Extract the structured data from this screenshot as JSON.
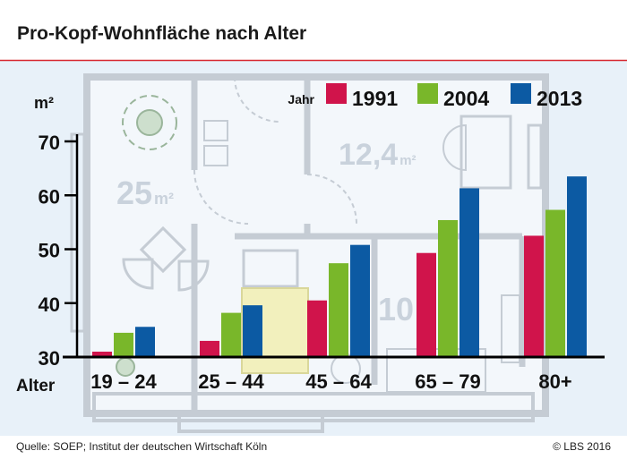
{
  "title": "Pro-Kopf-Wohnfläche nach Alter",
  "source": "Quelle: SOEP; Institut der deutschen Wirtschaft Köln",
  "copyright": "© LBS 2016",
  "colors": {
    "header_bg": "#ffffff",
    "plot_bg": "#e8f1f9",
    "title_rule": "#d7282f",
    "series_1991": "#d0144b",
    "series_2004": "#79b72a",
    "series_2013": "#0c5aa3",
    "floorplan_line": "#c5ccd4",
    "floorplan_fill": "#f3f7fb"
  },
  "floorplan": {
    "room_labels": [
      {
        "number": "25",
        "unit": "m²"
      },
      {
        "number": "12,4",
        "unit": "m²"
      },
      {
        "number": "10",
        "unit": ""
      }
    ]
  },
  "chart_data": {
    "type": "bar",
    "title": "Pro-Kopf-Wohnfläche nach Alter",
    "ylabel": "m²",
    "xlabel": "Alter",
    "legend_label": "Jahr",
    "legend_position": "top-right",
    "ylim": [
      30,
      70
    ],
    "yticks": [
      30,
      40,
      50,
      60,
      70
    ],
    "categories": [
      "19 – 24",
      "25 – 44",
      "45 – 64",
      "65 – 79",
      "80+"
    ],
    "series": [
      {
        "name": "1991",
        "color_key": "series_1991",
        "values": [
          31.0,
          33.0,
          40.5,
          49.3,
          52.5
        ]
      },
      {
        "name": "2004",
        "color_key": "series_2004",
        "values": [
          34.5,
          38.2,
          47.4,
          55.4,
          57.3
        ]
      },
      {
        "name": "2013",
        "color_key": "series_2013",
        "values": [
          35.6,
          39.6,
          50.8,
          61.3,
          63.5
        ]
      }
    ]
  }
}
